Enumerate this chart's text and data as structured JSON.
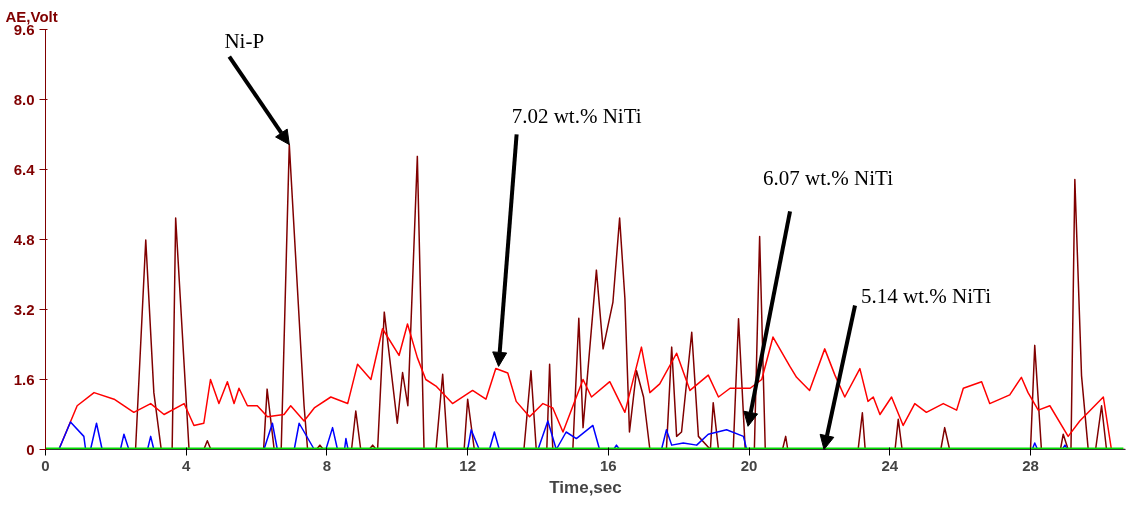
{
  "chart_data": {
    "type": "line",
    "xlabel": "Time,sec",
    "ylabel": "AE,Volt",
    "xlim": [
      0,
      30.7
    ],
    "ylim": [
      0,
      9.6
    ],
    "xticks": [
      0,
      4,
      8,
      12,
      16,
      20,
      24,
      28
    ],
    "yticks": [
      0,
      1.6,
      3.2,
      4.8,
      6.4,
      {
        "value": 8,
        "label": "8.0"
      },
      9.6
    ],
    "grid": false,
    "line_style": "solid",
    "marker": "none",
    "series": [
      {
        "color": "#800000",
        "x": [
          0,
          2.5,
          2.56,
          2.85,
          3.08,
          3.29,
          3.5,
          3.6,
          3.7,
          4.08,
          4.5,
          4.6,
          4.7,
          6.2,
          6.3,
          6.5,
          6.7,
          6.93,
          7.35,
          7.45,
          7.7,
          7.8,
          7.9,
          8.7,
          8.82,
          8.96,
          9.2,
          9.3,
          9.4,
          9.44,
          9.63,
          10.0,
          10.15,
          10.3,
          10.57,
          10.76,
          11.1,
          11.29,
          11.43,
          11.9,
          12.0,
          12.19,
          13.6,
          13.8,
          13.95,
          14.25,
          14.33,
          14.42,
          14.99,
          15.16,
          15.28,
          15.66,
          15.85,
          16.13,
          16.32,
          16.47,
          16.6,
          16.8,
          17.0,
          17.18,
          17.65,
          17.8,
          17.94,
          18.08,
          18.37,
          18.56,
          18.9,
          18.98,
          19.13,
          19.55,
          19.7,
          19.89,
          20.15,
          20.3,
          20.46,
          20.95,
          21.04,
          21.1,
          23.1,
          23.22,
          23.3,
          24.15,
          24.24,
          24.35,
          25.45,
          25.56,
          25.7,
          28.0,
          28.12,
          28.31,
          28.85,
          28.93,
          29.07,
          29.15,
          29.26,
          29.45,
          29.64,
          29.85,
          30.02,
          30.16,
          30.7
        ],
        "values": [
          0,
          0,
          0,
          4.79,
          1.3,
          0,
          0,
          0,
          5.29,
          0,
          0,
          0.2,
          0,
          0,
          1.38,
          0,
          0,
          6.97,
          1.0,
          0,
          0,
          0.1,
          0,
          0,
          0.88,
          0,
          0,
          0.1,
          0,
          0,
          3.14,
          0.6,
          1.76,
          1.0,
          6.7,
          0,
          0,
          1.72,
          0,
          0,
          1.15,
          0,
          0,
          1.8,
          0,
          0,
          1.95,
          0,
          0,
          3.0,
          0.5,
          4.1,
          2.3,
          3.37,
          5.29,
          3.45,
          0.4,
          1.8,
          1.2,
          0,
          0,
          2.34,
          0.3,
          0.4,
          2.68,
          0.3,
          0,
          1.07,
          0,
          0,
          2.99,
          0,
          0,
          4.87,
          0,
          0,
          0.3,
          0,
          0,
          0.84,
          0,
          0,
          0.69,
          0,
          0,
          0.5,
          0,
          0,
          2.38,
          0,
          0,
          0.35,
          0,
          0,
          6.17,
          1.69,
          0,
          0,
          1.0,
          0,
          0
        ]
      },
      {
        "color": "#ff0000",
        "x": [
          0.38,
          0.9,
          1.38,
          1.95,
          2.51,
          2.99,
          3.37,
          3.94,
          4.22,
          4.5,
          4.69,
          4.93,
          5.17,
          5.36,
          5.5,
          5.74,
          6.02,
          6.31,
          6.78,
          6.97,
          7.35,
          7.64,
          8.11,
          8.59,
          8.87,
          9.25,
          9.58,
          10.05,
          10.29,
          10.57,
          10.81,
          11.1,
          11.57,
          12.14,
          12.52,
          12.8,
          13.14,
          13.38,
          13.76,
          14.14,
          14.42,
          14.71,
          15.28,
          15.52,
          16.04,
          16.47,
          16.94,
          17.18,
          17.46,
          17.94,
          18.32,
          18.84,
          19.13,
          19.46,
          20.03,
          20.36,
          20.68,
          21.16,
          21.35,
          21.72,
          22.15,
          22.44,
          22.72,
          23.15,
          23.38,
          23.53,
          23.72,
          24.05,
          24.38,
          24.71,
          25.04,
          25.52,
          25.9,
          26.09,
          26.61,
          26.84,
          27.41,
          27.74,
          27.93,
          28.22,
          28.55,
          29.07,
          29.4,
          30.07,
          30.3
        ],
        "values": [
          0,
          1.0,
          1.3,
          1.15,
          0.85,
          1.05,
          0.8,
          1.05,
          0.55,
          0.6,
          1.6,
          1.05,
          1.55,
          1.05,
          1.4,
          1.0,
          1.0,
          0.75,
          0.8,
          1.0,
          0.65,
          0.95,
          1.2,
          1.05,
          1.95,
          1.6,
          2.76,
          2.15,
          2.87,
          2.1,
          1.6,
          1.45,
          1.05,
          1.35,
          1.15,
          1.85,
          1.75,
          1.1,
          0.75,
          1.05,
          0.95,
          0.4,
          1.6,
          1.2,
          1.55,
          0.85,
          2.34,
          1.3,
          1.5,
          2.2,
          1.35,
          1.7,
          1.2,
          1.4,
          1.4,
          1.6,
          2.57,
          1.9,
          1.65,
          1.35,
          2.3,
          1.7,
          1.2,
          1.85,
          1.1,
          1.2,
          0.8,
          1.2,
          0.55,
          1.05,
          0.85,
          1.05,
          0.9,
          1.4,
          1.55,
          1.05,
          1.25,
          1.65,
          1.3,
          0.9,
          1.0,
          0.3,
          0.65,
          1.2,
          0
        ]
      },
      {
        "color": "#0000ff",
        "x": [
          0.38,
          0.71,
          1.09,
          1.14,
          1.28,
          1.45,
          1.61,
          2.13,
          2.23,
          2.37,
          2.9,
          2.99,
          3.08,
          6.21,
          6.45,
          6.59,
          7.07,
          7.21,
          7.64,
          7.97,
          8.16,
          8.3,
          8.5,
          8.54,
          8.6,
          12.0,
          12.1,
          12.33,
          12.62,
          12.76,
          12.9,
          14.0,
          14.28,
          14.52,
          14.8,
          15.09,
          15.56,
          15.75,
          16.15,
          16.23,
          16.32,
          17.51,
          17.65,
          17.8,
          18.13,
          18.51,
          18.84,
          19.36,
          19.84,
          19.93,
          28.05,
          28.12,
          28.2,
          28.9,
          28.98,
          29.05
        ],
        "values": [
          0,
          0.63,
          0.3,
          0,
          0,
          0.6,
          0,
          0,
          0.35,
          0,
          0,
          0.3,
          0,
          0,
          0.6,
          0,
          0,
          0.6,
          0,
          0,
          0.5,
          0,
          0,
          0.25,
          0,
          0,
          0.45,
          0,
          0,
          0.4,
          0,
          0,
          0.65,
          0,
          0.4,
          0.25,
          0.55,
          0,
          0,
          0.1,
          0,
          0,
          0.45,
          0.1,
          0.15,
          0.1,
          0.35,
          0.45,
          0.3,
          0,
          0,
          0.15,
          0,
          0,
          0.1,
          0
        ]
      },
      {
        "color": "#00dd00",
        "x": [
          0,
          30.64
        ],
        "values": [
          0,
          0
        ]
      }
    ],
    "annotations": [
      {
        "text": "Ni-P",
        "x": 6.93,
        "y": 6.97
      },
      {
        "text": "7.02 wt.% NiTi",
        "x": 12.88,
        "y": 1.9
      },
      {
        "text": "6.07 wt.% NiTi",
        "x": 19.97,
        "y": 0.53
      },
      {
        "text": "5.14 wt.% NiTi",
        "x": 22.13,
        "y": 0
      }
    ]
  }
}
